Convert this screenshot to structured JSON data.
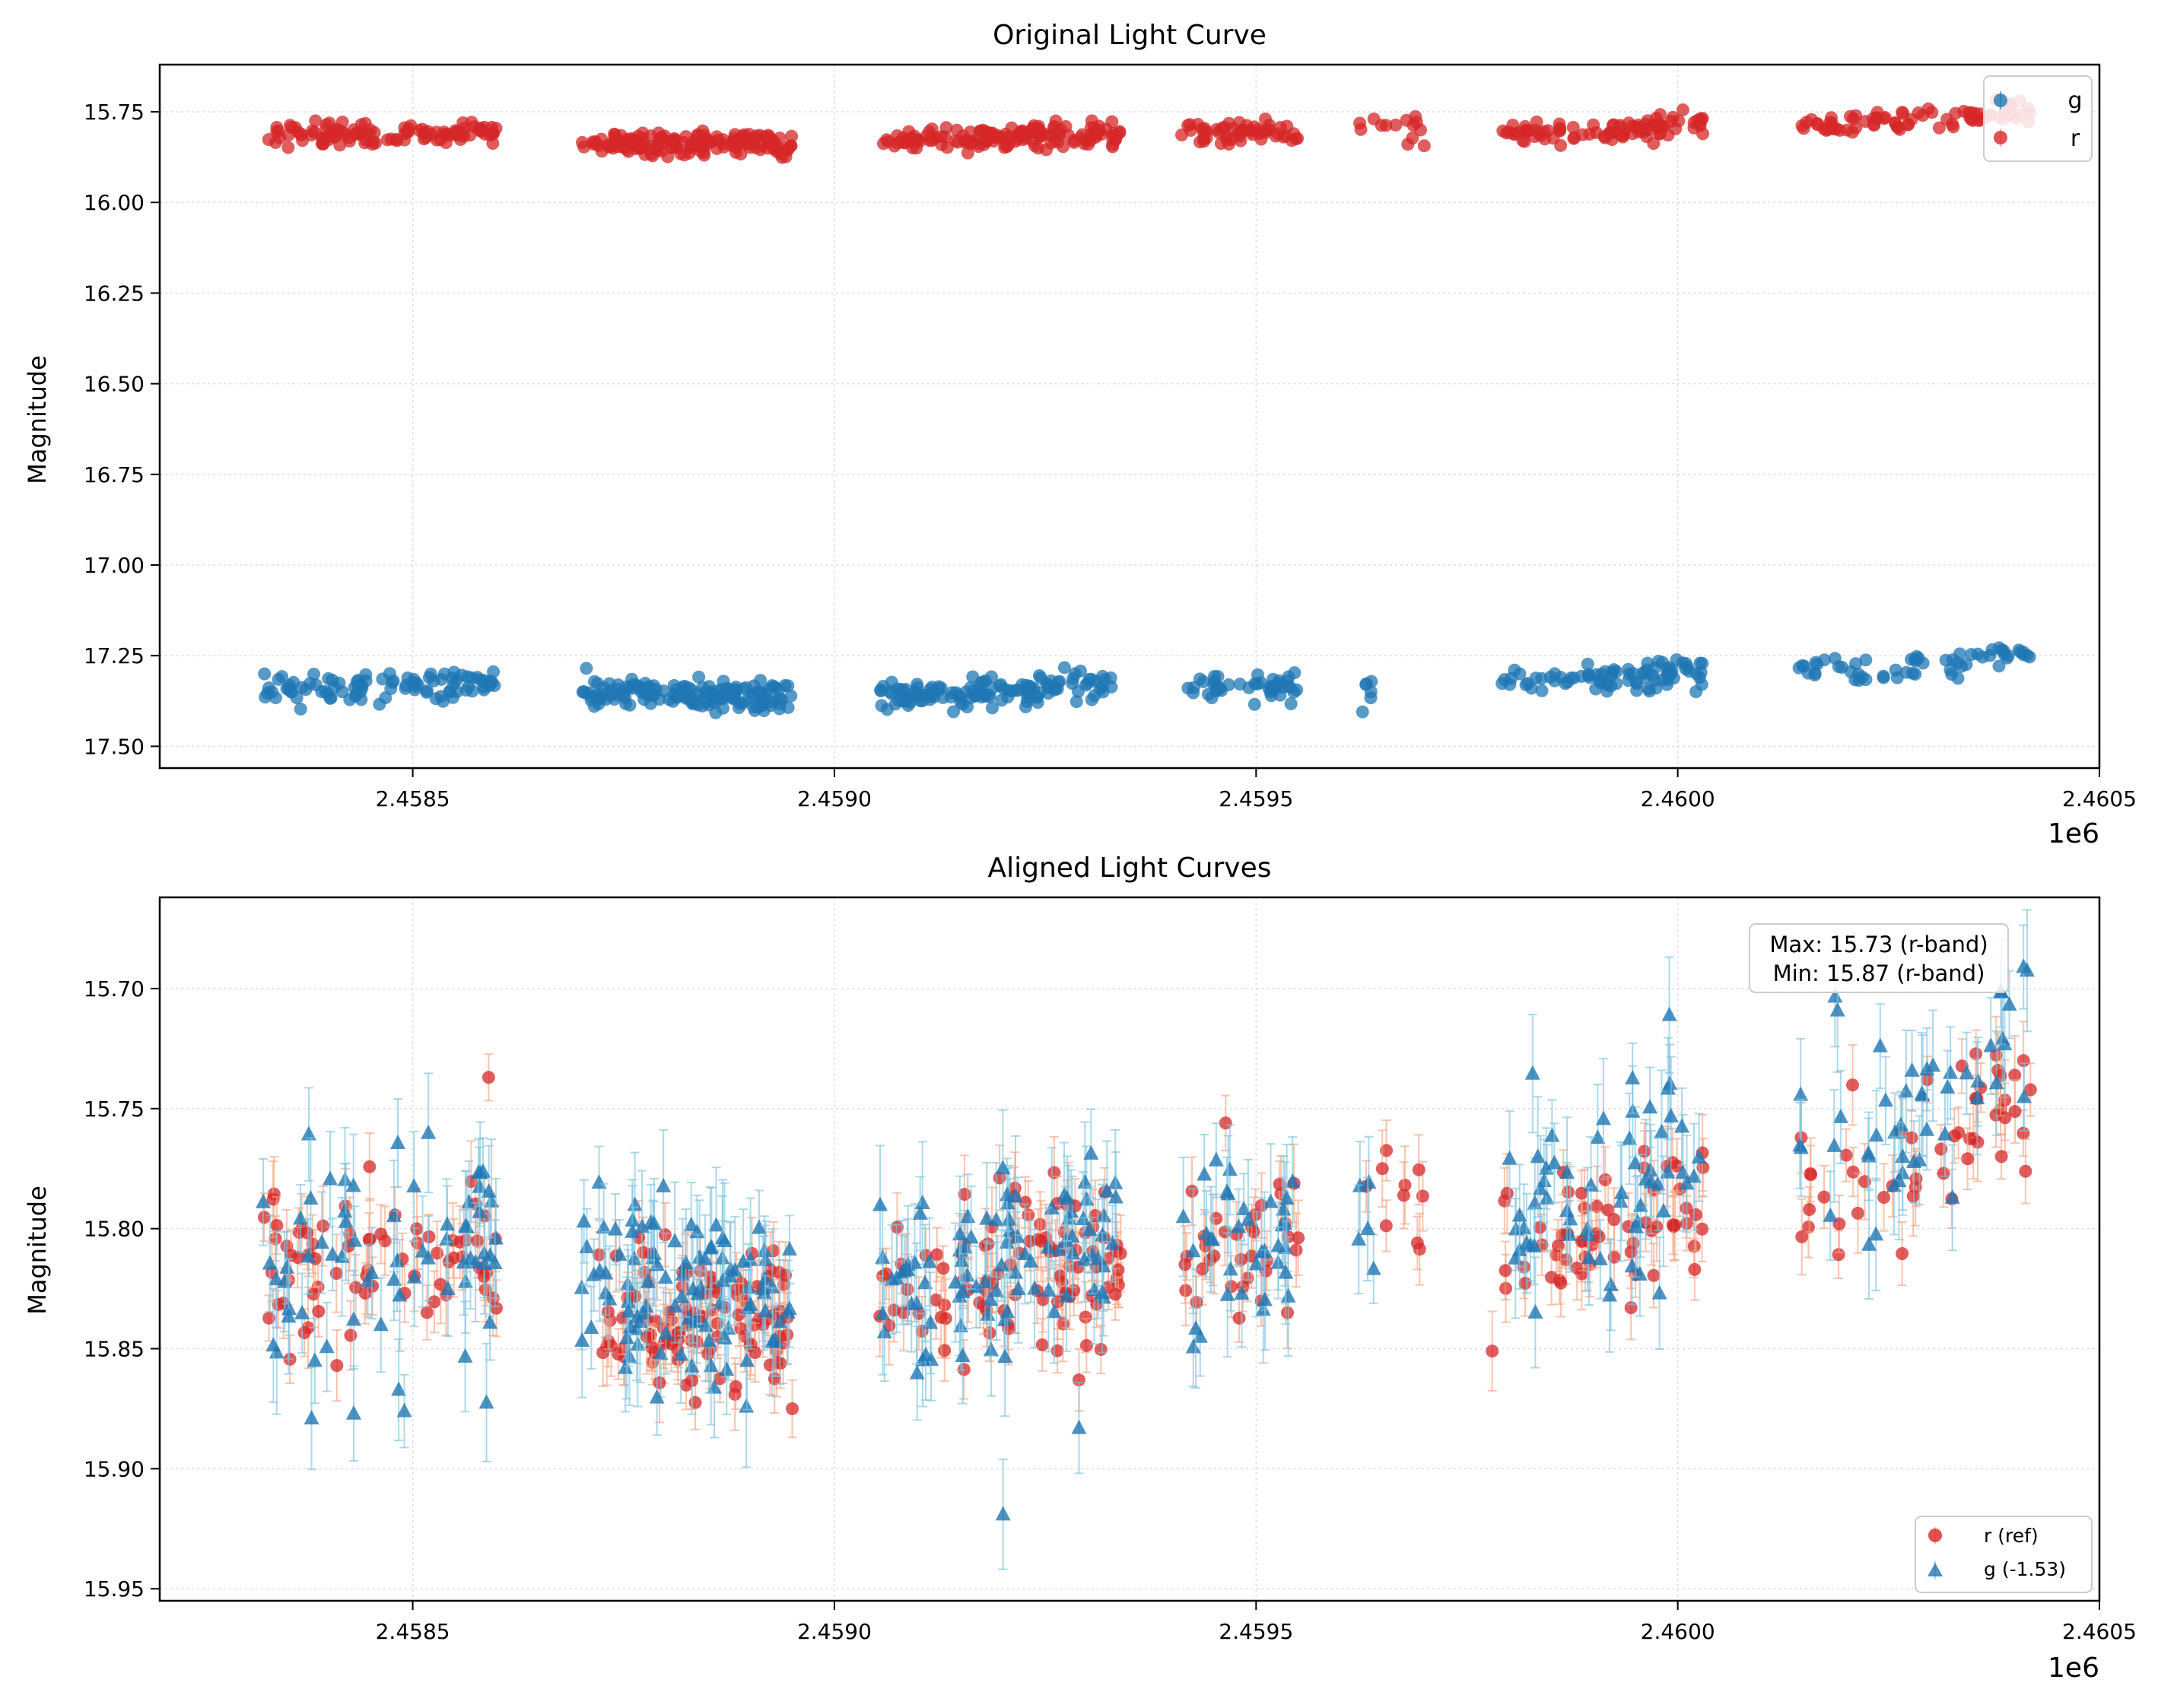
{
  "chart_data": [
    {
      "type": "scatter",
      "title": "Original Light Curve",
      "xlabel": "",
      "ylabel": "Magnitude",
      "x_offset_label": "1e6",
      "xlim": [
        2.4582,
        2.4605
      ],
      "ylim": [
        17.56,
        15.62
      ],
      "y_inverted": true,
      "x_ticks": [
        2.4585,
        2.459,
        2.4595,
        2.46,
        2.4605
      ],
      "x_tick_labels": [
        "2.4585",
        "2.4590",
        "2.4595",
        "2.4600",
        "2.4605"
      ],
      "y_ticks": [
        15.75,
        16.0,
        16.25,
        16.5,
        16.75,
        17.0,
        17.25,
        17.5
      ],
      "y_tick_labels": [
        "15.75",
        "16.00",
        "16.25",
        "16.50",
        "16.75",
        "17.00",
        "17.25",
        "17.50"
      ],
      "grid": true,
      "legend_position": "top-right",
      "legend": [
        {
          "label": "g",
          "color": "#1f77b4",
          "marker": "circle"
        },
        {
          "label": "r",
          "color": "#d62728",
          "marker": "circle"
        }
      ],
      "series": [
        {
          "name": "r",
          "color": "#d62728",
          "marker": "circle",
          "trend": [
            [
              2.45832,
              15.818
            ],
            [
              2.4586,
              15.805
            ],
            [
              2.4587,
              15.835
            ],
            [
              2.45895,
              15.838
            ],
            [
              2.45905,
              15.83
            ],
            [
              2.45933,
              15.812
            ],
            [
              2.4594,
              15.81
            ],
            [
              2.45955,
              15.805
            ],
            [
              2.45963,
              15.785
            ],
            [
              2.4597,
              15.792
            ],
            [
              2.4598,
              15.805
            ],
            [
              2.45995,
              15.8
            ],
            [
              2.46003,
              15.78
            ],
            [
              2.46015,
              15.785
            ],
            [
              2.46025,
              15.775
            ],
            [
              2.46041,
              15.745
            ]
          ],
          "segments": [
            [
              2.45832,
              2.4586,
              110
            ],
            [
              2.4587,
              2.45895,
              170
            ],
            [
              2.45905,
              2.45934,
              150
            ],
            [
              2.45941,
              2.45955,
              55
            ],
            [
              2.45962,
              2.4597,
              14
            ],
            [
              2.45979,
              2.46003,
              90
            ],
            [
              2.46014,
              2.46042,
              80
            ]
          ],
          "scatter_sd": 0.017
        },
        {
          "name": "g",
          "color": "#1f77b4",
          "marker": "circle",
          "trend": [
            [
              2.45832,
              17.345
            ],
            [
              2.4586,
              17.33
            ],
            [
              2.4587,
              17.35
            ],
            [
              2.45895,
              17.365
            ],
            [
              2.45905,
              17.36
            ],
            [
              2.45933,
              17.33
            ],
            [
              2.4594,
              17.34
            ],
            [
              2.45955,
              17.335
            ],
            [
              2.45963,
              17.33
            ],
            [
              2.4598,
              17.32
            ],
            [
              2.45995,
              17.31
            ],
            [
              2.46003,
              17.285
            ],
            [
              2.46015,
              17.29
            ],
            [
              2.46025,
              17.3
            ],
            [
              2.46041,
              17.235
            ]
          ],
          "segments": [
            [
              2.45832,
              2.4586,
              95
            ],
            [
              2.4587,
              2.45895,
              150
            ],
            [
              2.45905,
              2.45934,
              130
            ],
            [
              2.45941,
              2.45955,
              45
            ],
            [
              2.45962,
              2.45964,
              6
            ],
            [
              2.45979,
              2.46003,
              85
            ],
            [
              2.46014,
              2.46042,
              60
            ]
          ],
          "scatter_sd": 0.02
        }
      ]
    },
    {
      "type": "scatter",
      "title": "Aligned Light Curves",
      "xlabel": "",
      "ylabel": "Magnitude",
      "x_offset_label": "1e6",
      "xlim": [
        2.4582,
        2.4605
      ],
      "ylim": [
        15.955,
        15.662
      ],
      "y_inverted": true,
      "x_ticks": [
        2.4585,
        2.459,
        2.4595,
        2.46,
        2.4605
      ],
      "x_tick_labels": [
        "2.4585",
        "2.4590",
        "2.4595",
        "2.4600",
        "2.4605"
      ],
      "y_ticks": [
        15.7,
        15.75,
        15.8,
        15.85,
        15.9,
        15.95
      ],
      "y_tick_labels": [
        "15.70",
        "15.75",
        "15.80",
        "15.85",
        "15.90",
        "15.95"
      ],
      "grid": true,
      "legend_position": "bottom-right",
      "legend": [
        {
          "label": "r (ref)",
          "color": "#d62728",
          "marker": "circle"
        },
        {
          "label": "g (-1.53)",
          "color": "#1f77b4",
          "marker": "triangle"
        }
      ],
      "annotation": {
        "lines": [
          "Max: 15.73 (r-band)",
          "Min: 15.87 (r-band)"
        ],
        "position": "top-right"
      },
      "series": [
        {
          "name": "r (ref)",
          "color": "#d62728",
          "marker": "circle",
          "errbar_color": "#f4a582",
          "trend": [
            [
              2.45832,
              15.818
            ],
            [
              2.4586,
              15.805
            ],
            [
              2.4587,
              15.835
            ],
            [
              2.45895,
              15.838
            ],
            [
              2.45905,
              15.83
            ],
            [
              2.45933,
              15.812
            ],
            [
              2.4594,
              15.81
            ],
            [
              2.45955,
              15.805
            ],
            [
              2.45963,
              15.785
            ],
            [
              2.4597,
              15.792
            ],
            [
              2.4598,
              15.805
            ],
            [
              2.45995,
              15.8
            ],
            [
              2.46003,
              15.78
            ],
            [
              2.46015,
              15.785
            ],
            [
              2.46025,
              15.775
            ],
            [
              2.46041,
              15.745
            ]
          ],
          "segments": [
            [
              2.45832,
              2.4586,
              70
            ],
            [
              2.4587,
              2.45895,
              110
            ],
            [
              2.45905,
              2.45934,
              100
            ],
            [
              2.45941,
              2.45955,
              35
            ],
            [
              2.45962,
              2.4597,
              10
            ],
            [
              2.45979,
              2.46003,
              60
            ],
            [
              2.46014,
              2.46042,
              50
            ]
          ],
          "scatter_sd": 0.016,
          "errbar": 0.013,
          "extra_points": [
            [
              2.45859,
              15.737
            ],
            [
              2.45929,
              15.863
            ],
            [
              2.45978,
              15.851
            ],
            [
              2.46002,
              15.817
            ],
            [
              2.46041,
              15.73
            ],
            [
              2.45841,
              15.857
            ],
            [
              2.45895,
              15.875
            ]
          ]
        },
        {
          "name": "g (-1.53)",
          "color": "#1f77b4",
          "marker": "triangle",
          "errbar_color": "#7fc3de",
          "trend": [
            [
              2.45832,
              15.815
            ],
            [
              2.4586,
              15.8
            ],
            [
              2.4587,
              15.82
            ],
            [
              2.45895,
              15.835
            ],
            [
              2.45905,
              15.83
            ],
            [
              2.45933,
              15.8
            ],
            [
              2.4594,
              15.81
            ],
            [
              2.45955,
              15.805
            ],
            [
              2.45963,
              15.79
            ],
            [
              2.4598,
              15.8
            ],
            [
              2.45995,
              15.78
            ],
            [
              2.46003,
              15.77
            ],
            [
              2.46015,
              15.76
            ],
            [
              2.46025,
              15.77
            ],
            [
              2.46041,
              15.705
            ]
          ],
          "segments": [
            [
              2.45832,
              2.4586,
              65
            ],
            [
              2.4587,
              2.45895,
              100
            ],
            [
              2.45905,
              2.45934,
              90
            ],
            [
              2.45941,
              2.45955,
              35
            ],
            [
              2.45962,
              2.45964,
              5
            ],
            [
              2.45979,
              2.46003,
              60
            ],
            [
              2.46014,
              2.46042,
              45
            ]
          ],
          "scatter_sd": 0.022,
          "errbar": 0.02,
          "extra_points": [
            [
              2.4592,
              15.919
            ],
            [
              2.45929,
              15.883
            ],
            [
              2.45999,
              15.711
            ],
            [
              2.46041,
              15.691
            ],
            [
              2.46024,
              15.724
            ],
            [
              2.45838,
              15.879
            ],
            [
              2.45843,
              15.877
            ],
            [
              2.45849,
              15.876
            ]
          ]
        }
      ]
    }
  ]
}
